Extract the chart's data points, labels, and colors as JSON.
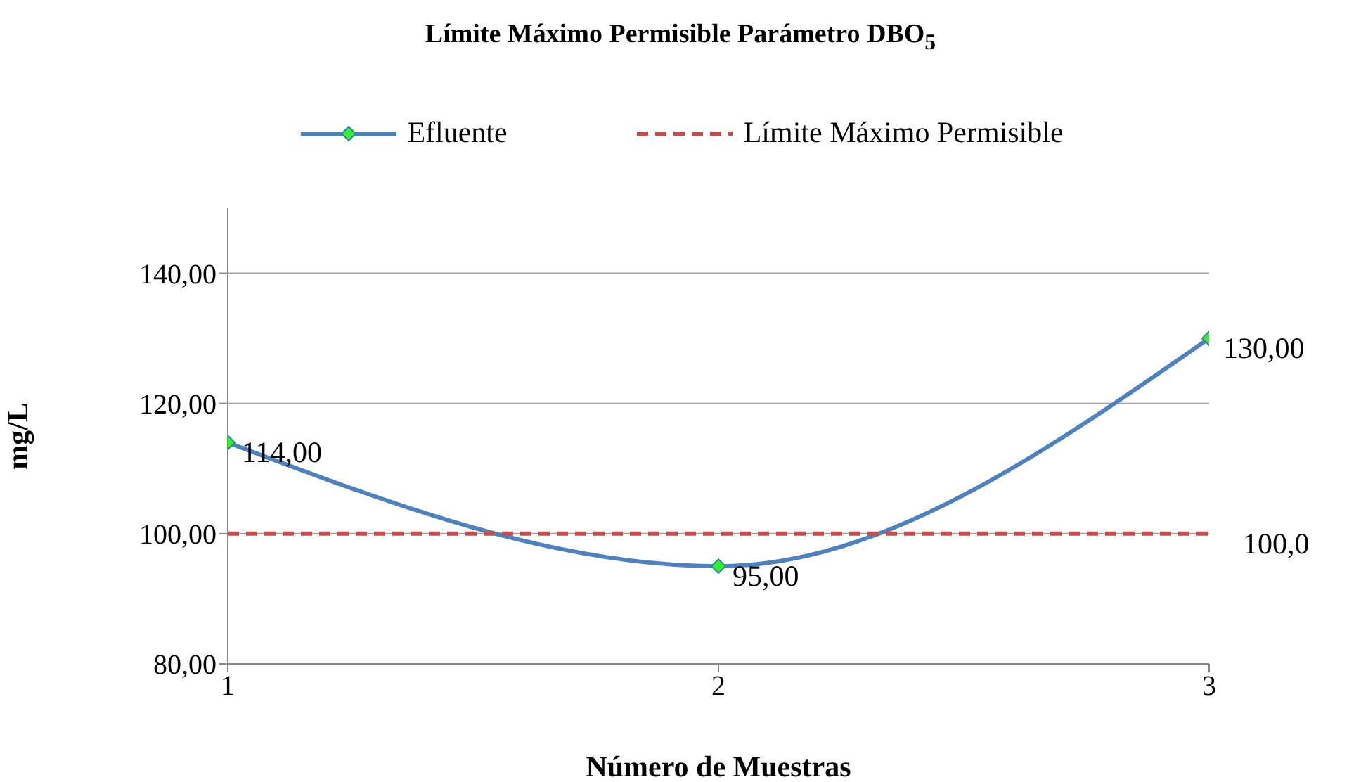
{
  "chart_data": {
    "type": "line",
    "title": "Límite Máximo Permisible Parámetro DBO$_{5}$",
    "xlabel": "Número de Muestras",
    "ylabel": "mg/L",
    "x": [
      1,
      2,
      3
    ],
    "xlim": [
      1,
      3
    ],
    "xticks": [
      1,
      2,
      3
    ],
    "ylim": [
      80,
      150
    ],
    "yticks": [
      {
        "value": 80,
        "label": "80,00"
      },
      {
        "value": 100,
        "label": "100,00"
      },
      {
        "value": 120,
        "label": "120,00"
      },
      {
        "value": 140,
        "label": "140,00"
      }
    ],
    "grid": "y",
    "legend": "top",
    "series": [
      {
        "name": "Efluente",
        "color": "#4f81bd",
        "values": [
          114,
          95,
          130
        ],
        "marker": "diamond",
        "line_style": "solid",
        "value_labels": [
          "114,00",
          "95,00",
          "130,00"
        ]
      },
      {
        "name": "Límite Máximo Permisible",
        "color": "#c0504d",
        "values": [
          100,
          100,
          100
        ],
        "marker": "none",
        "line_style": "dashed",
        "value_labels": [
          null,
          null,
          "100,0"
        ]
      }
    ]
  }
}
